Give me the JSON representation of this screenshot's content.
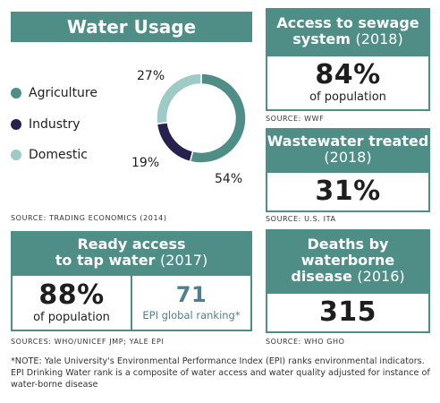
{
  "water_usage": {
    "title": "Water Usage",
    "source": "SOURCE: TRADING ECONOMICS (2014)"
  },
  "chart_data": {
    "type": "pie",
    "title": "Water Usage",
    "categories": [
      "Agriculture",
      "Industry",
      "Domestic"
    ],
    "values": [
      54,
      19,
      27
    ],
    "labels": [
      "54%",
      "19%",
      "27%"
    ],
    "colors": [
      "#4f8e87",
      "#26214f",
      "#9ecbc6"
    ],
    "legend": "left",
    "donut": true
  },
  "sewage": {
    "title": "Access to sewage system",
    "year": "(2018)",
    "value": "84%",
    "sub": "of population",
    "source": "SOURCE: WWF"
  },
  "wastewater": {
    "title": "Wastewater treated",
    "year": "(2018)",
    "value": "31%",
    "source": "SOURCE: U.S. ITA"
  },
  "tap": {
    "title_line1": "Ready access",
    "title_line2": "to tap water",
    "year": "(2017)",
    "value": "88%",
    "sub": "of population",
    "rank_value": "71",
    "rank_sub": "EPI global ranking*",
    "source": "SOURCES: WHO/UNICEF JMP; YALE EPI"
  },
  "deaths": {
    "title_line1": "Deaths by",
    "title_line2": "waterborne",
    "title_line3": "disease",
    "year": "(2016)",
    "value": "315",
    "source": "SOURCE: WHO GHO"
  },
  "note": "*NOTE: Yale University's Environmental Performance Index (EPI) ranks environmental indicators. EPI Drinking Water rank is a composite of water access and water quality adjusted for instance of water-borne disease",
  "colors": {
    "teal": "#4f8e87",
    "navy": "#26214f",
    "light_teal": "#9ecbc6",
    "rank_text": "#4f7f8f"
  }
}
